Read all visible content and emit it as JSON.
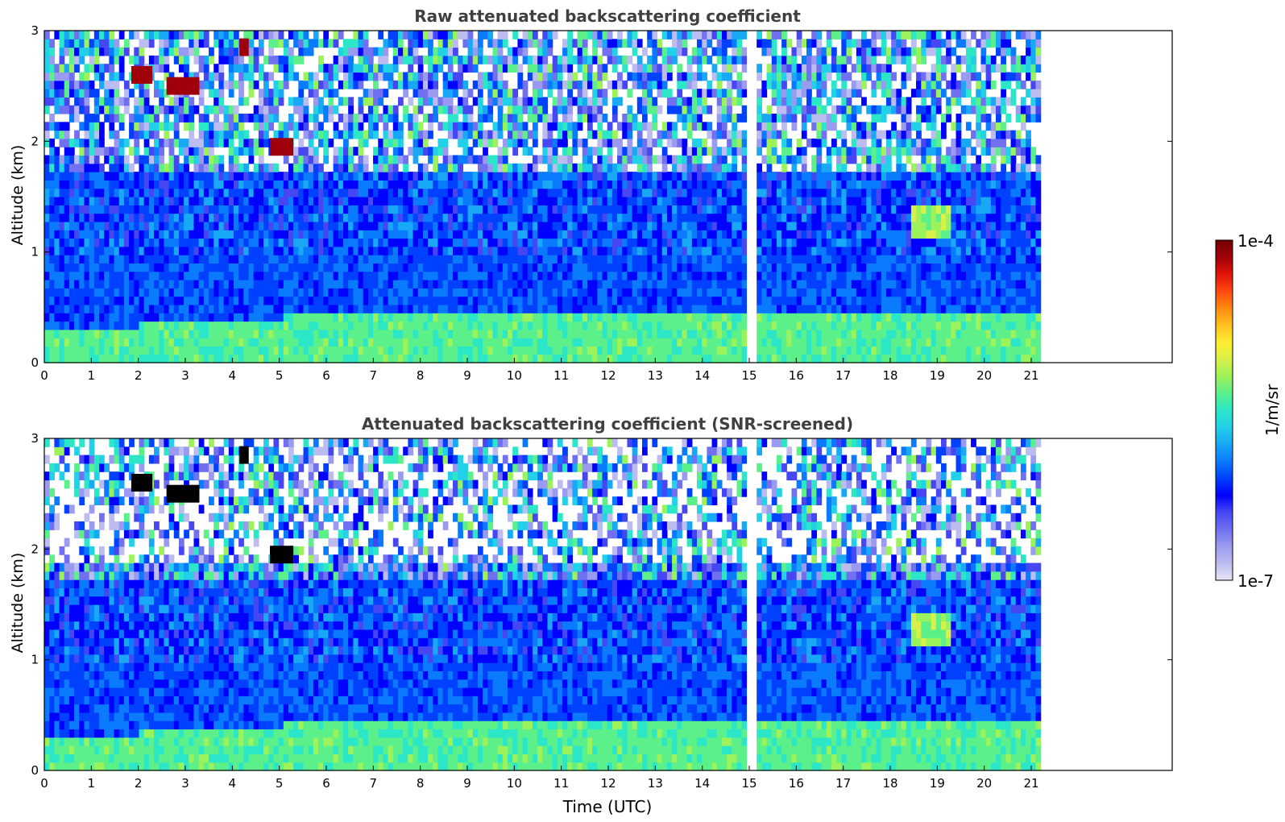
{
  "figure": {
    "colorbar": {
      "max_label": "1e-4",
      "min_label": "1e-7",
      "unit_label": "1/m/sr",
      "scale": "log",
      "range": [
        1e-07,
        0.0001
      ],
      "colormap": [
        "#e6e6f5",
        "#bcbcf0",
        "#9a9af0",
        "#7070f0",
        "#4646f2",
        "#0000ff",
        "#0040ff",
        "#0a7aff",
        "#18a8f5",
        "#22d0e8",
        "#2ce6c8",
        "#5cf08a",
        "#9cf25a",
        "#d8f04a",
        "#ffee30",
        "#ffc020",
        "#ff8a10",
        "#ff4a10",
        "#e0140a",
        "#a0000a",
        "#700000"
      ]
    }
  },
  "chart_data": [
    {
      "type": "heatmap",
      "title": "Raw attenuated backscattering coefficient",
      "xlabel": "",
      "ylabel": "Altitude (km)",
      "xlim": [
        0,
        24
      ],
      "ylim": [
        0,
        3
      ],
      "xticks": [
        "0",
        "1",
        "2",
        "3",
        "4",
        "5",
        "6",
        "7",
        "8",
        "9",
        "10",
        "11",
        "12",
        "13",
        "14",
        "15",
        "16",
        "17",
        "18",
        "19",
        "20",
        "21"
      ],
      "yticks": [
        "0",
        "1",
        "2",
        "3"
      ],
      "data_end_time": 21.2,
      "missing_time_intervals": [
        [
          14.95,
          15.08
        ]
      ],
      "features": [
        {
          "kind": "boundary_layer",
          "start_time": 0,
          "end_time": 21.2,
          "top_altitude_km": [
            0.25,
            0.4
          ],
          "color": "cyan"
        },
        {
          "kind": "cloud",
          "start_time": 1.85,
          "end_time": 2.3,
          "altitude_km": 2.6,
          "color": "#a0000a"
        },
        {
          "kind": "cloud",
          "start_time": 2.6,
          "end_time": 3.3,
          "altitude_km": 2.5,
          "color": "#a0000a"
        },
        {
          "kind": "cloud",
          "start_time": 4.15,
          "end_time": 4.35,
          "altitude_km": 2.85,
          "color": "#a0000a"
        },
        {
          "kind": "cloud",
          "start_time": 4.8,
          "end_time": 5.3,
          "altitude_km": 1.95,
          "color": "#a0000a"
        },
        {
          "kind": "aerosol_layer",
          "start_time": 18.4,
          "end_time": 19.2,
          "altitude_km": 1.2,
          "color": "#5cf08a"
        }
      ]
    },
    {
      "type": "heatmap",
      "title": "Attenuated backscattering coefficient (SNR-screened)",
      "xlabel": "Time (UTC)",
      "ylabel": "Altitude (km)",
      "xlim": [
        0,
        24
      ],
      "ylim": [
        0,
        3
      ],
      "xticks": [
        "0",
        "1",
        "2",
        "3",
        "4",
        "5",
        "6",
        "7",
        "8",
        "9",
        "10",
        "11",
        "12",
        "13",
        "14",
        "15",
        "16",
        "17",
        "18",
        "19",
        "20",
        "21"
      ],
      "yticks": [
        "0",
        "1",
        "2",
        "3"
      ],
      "data_end_time": 21.2,
      "missing_time_intervals": [
        [
          14.95,
          15.08
        ]
      ],
      "screened_above_altitude_km": 1.8,
      "features": [
        {
          "kind": "boundary_layer",
          "start_time": 0,
          "end_time": 21.2,
          "top_altitude_km": [
            0.25,
            0.4
          ],
          "color": "cyan"
        },
        {
          "kind": "cloud",
          "start_time": 1.85,
          "end_time": 2.3,
          "altitude_km": 2.6,
          "color": "#000000"
        },
        {
          "kind": "cloud",
          "start_time": 2.6,
          "end_time": 3.3,
          "altitude_km": 2.5,
          "color": "#000000"
        },
        {
          "kind": "cloud",
          "start_time": 4.15,
          "end_time": 4.35,
          "altitude_km": 2.85,
          "color": "#000000"
        },
        {
          "kind": "cloud",
          "start_time": 4.8,
          "end_time": 5.3,
          "altitude_km": 1.95,
          "color": "#000000"
        },
        {
          "kind": "aerosol_layer",
          "start_time": 18.4,
          "end_time": 19.2,
          "altitude_km": 1.2,
          "color": "#5cf08a"
        }
      ]
    }
  ]
}
